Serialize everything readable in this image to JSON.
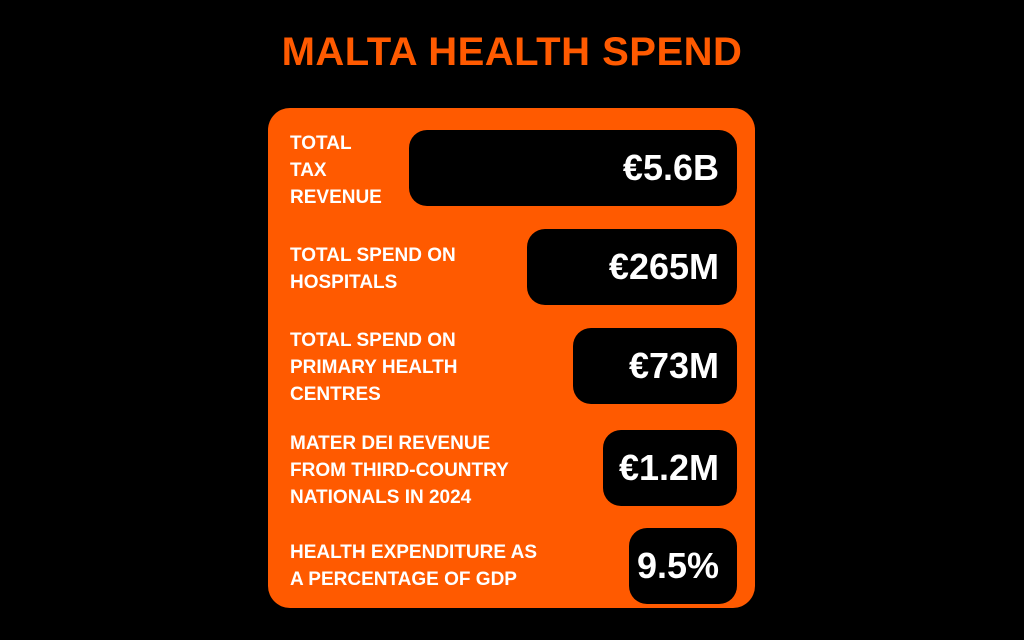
{
  "title": "MALTA HEALTH SPEND",
  "colors": {
    "background": "#000000",
    "accent": "#ff5a00",
    "pill": "#000000",
    "text": "#ffffff"
  },
  "stats": [
    {
      "label": "TOTAL\nTAX\nREVENUE",
      "value": "€5.6B"
    },
    {
      "label": "TOTAL SPEND ON\nHOSPITALS",
      "value": "€265M"
    },
    {
      "label": "TOTAL SPEND ON\nPRIMARY HEALTH\nCENTRES",
      "value": "€73M"
    },
    {
      "label": "MATER DEI REVENUE\nFROM THIRD-COUNTRY\nNATIONALS IN 2024",
      "value": "€1.2M"
    },
    {
      "label": "HEALTH EXPENDITURE AS\nA PERCENTAGE OF GDP",
      "value": "9.5%"
    }
  ]
}
